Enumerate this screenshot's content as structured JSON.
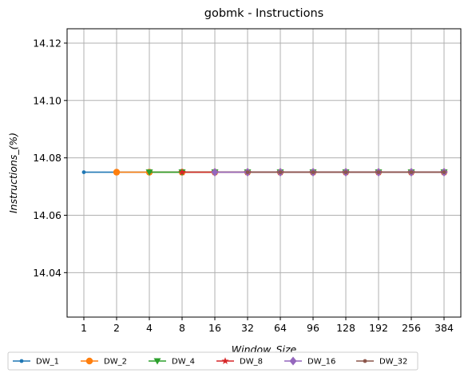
{
  "chart_data": {
    "type": "line",
    "title": "gobmk - Instructions",
    "xlabel": "Window_Size",
    "ylabel": "Instructions_(%)",
    "categories": [
      "1",
      "2",
      "4",
      "8",
      "16",
      "32",
      "64",
      "96",
      "128",
      "192",
      "256",
      "384"
    ],
    "ylim": [
      14.0245,
      14.125
    ],
    "yticks": [
      "14.04",
      "14.06",
      "14.08",
      "14.10",
      "14.12"
    ],
    "ytick_values": [
      14.04,
      14.06,
      14.08,
      14.1,
      14.12
    ],
    "grid": true,
    "legend_position": "bottom",
    "series": [
      {
        "name": "DW_1",
        "color": "#1f77b4",
        "marker": "point",
        "values": [
          14.075,
          14.075,
          14.075,
          14.075,
          14.075,
          14.075,
          14.075,
          14.075,
          14.075,
          14.075,
          14.075,
          14.075
        ]
      },
      {
        "name": "DW_2",
        "color": "#ff7f0e",
        "marker": "circle",
        "values": [
          null,
          14.075,
          14.075,
          14.075,
          14.075,
          14.075,
          14.075,
          14.075,
          14.075,
          14.075,
          14.075,
          14.075
        ]
      },
      {
        "name": "DW_4",
        "color": "#2ca02c",
        "marker": "triangle",
        "values": [
          null,
          null,
          14.075,
          14.075,
          14.075,
          14.075,
          14.075,
          14.075,
          14.075,
          14.075,
          14.075,
          14.075
        ]
      },
      {
        "name": "DW_8",
        "color": "#d62728",
        "marker": "star",
        "values": [
          null,
          null,
          null,
          14.075,
          14.075,
          14.075,
          14.075,
          14.075,
          14.075,
          14.075,
          14.075,
          14.075
        ]
      },
      {
        "name": "DW_16",
        "color": "#9467bd",
        "marker": "diamond",
        "values": [
          null,
          null,
          null,
          null,
          14.075,
          14.075,
          14.075,
          14.075,
          14.075,
          14.075,
          14.075,
          14.075
        ]
      },
      {
        "name": "DW_32",
        "color": "#8c564b",
        "marker": "point",
        "values": [
          null,
          null,
          null,
          null,
          null,
          14.075,
          14.075,
          14.075,
          14.075,
          14.075,
          14.075,
          14.075
        ]
      }
    ]
  }
}
